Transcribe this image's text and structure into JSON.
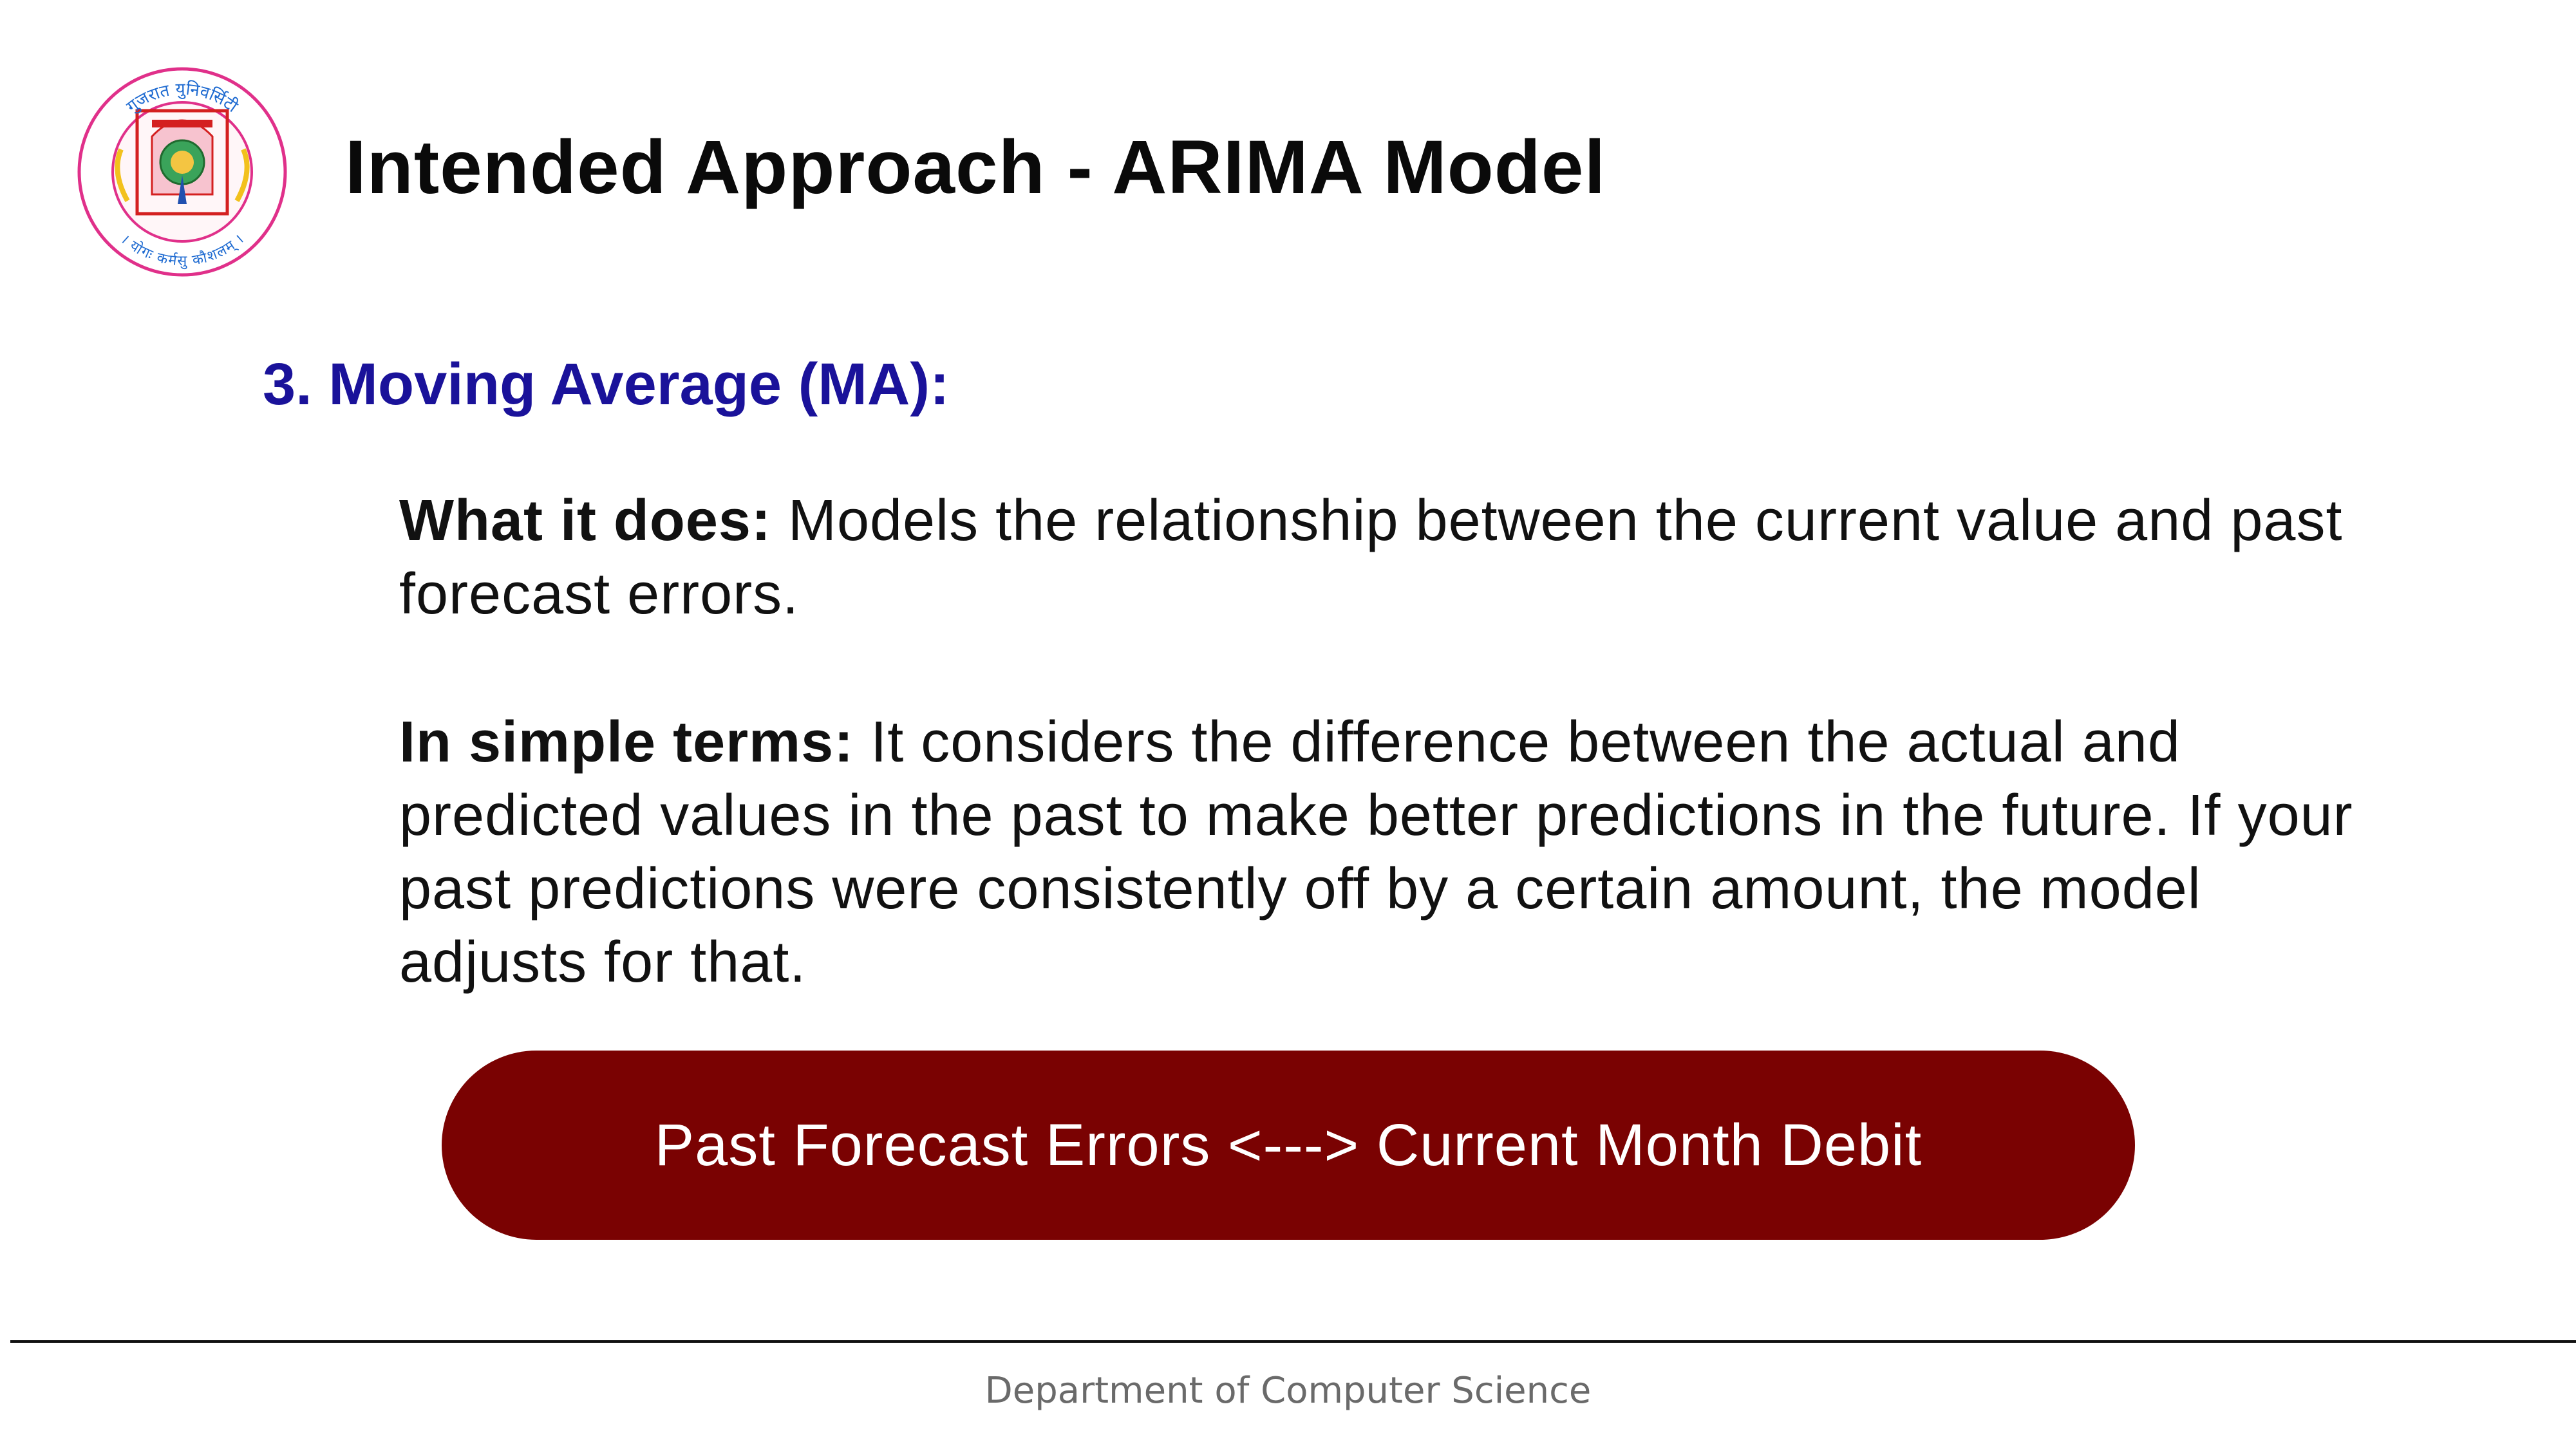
{
  "slide": {
    "title": "Intended Approach - ARIMA Model",
    "section_heading": "3. Moving Average (MA):",
    "paragraphs": [
      {
        "label": "What it does:",
        "text": " Models the relationship between the current value and past forecast errors."
      },
      {
        "label": "In simple terms:",
        "text": " It considers the difference between the actual and predicted values in the past to make better predictions in the future. If your past predictions were consistently off by a certain amount, the model adjusts for that."
      }
    ],
    "highlight_box": "Past Forecast Errors <---> Current Month Debit",
    "footer": "Department of Computer Science"
  },
  "logo": {
    "icon": "university-seal-icon",
    "top_text": "गुजरात युनिवर्सिटी",
    "bottom_text": "। योगः कर्मसु कौशलम् ।"
  },
  "colors": {
    "heading_blue": "#1a129a",
    "pill_maroon": "#7a0202",
    "seal_pink": "#e0308a",
    "footer_gray": "#6a6a6a"
  }
}
